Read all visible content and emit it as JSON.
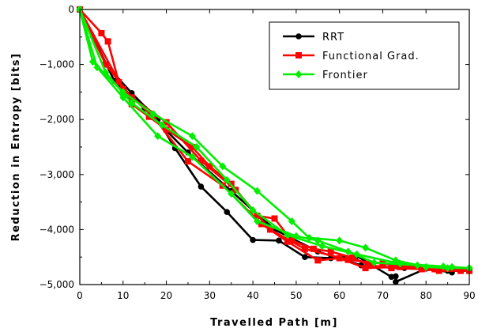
{
  "chart_data": {
    "type": "line",
    "xlabel": "Travelled Path [m]",
    "ylabel": "Reduction in Entropy [bits]",
    "xlim": [
      0,
      90
    ],
    "ylim": [
      -5000,
      0
    ],
    "x_ticks": [
      0,
      10,
      20,
      30,
      40,
      50,
      60,
      70,
      80,
      90
    ],
    "y_ticks": [
      0,
      -1000,
      -2000,
      -3000,
      -4000,
      -5000
    ],
    "x_tick_labels": [
      "0",
      "10",
      "20",
      "30",
      "40",
      "50",
      "60",
      "70",
      "80",
      "90"
    ],
    "y_tick_labels": [
      "0",
      "−1,000",
      "−2,000",
      "−3,000",
      "−4,000",
      "−5,000"
    ],
    "grid": false,
    "legend_position": "top-right",
    "series": [
      {
        "name": "RRT",
        "color": "#000000",
        "marker": "circle",
        "runs": [
          [
            [
              0,
              0
            ],
            [
              6,
              -1000
            ],
            [
              12,
              -1520
            ],
            [
              18,
              -2000
            ],
            [
              22,
              -2520
            ],
            [
              28,
              -3220
            ],
            [
              34,
              -3680
            ],
            [
              40,
              -4190
            ],
            [
              46,
              -4200
            ],
            [
              52,
              -4500
            ],
            [
              58,
              -4520
            ],
            [
              64,
              -4480
            ],
            [
              72,
              -4860
            ],
            [
              73,
              -4850
            ],
            [
              73,
              -4950
            ],
            [
              80,
              -4710
            ],
            [
              86,
              -4780
            ]
          ],
          [
            [
              0,
              0
            ],
            [
              8,
              -1300
            ],
            [
              15,
              -1800
            ],
            [
              25,
              -2600
            ],
            [
              35,
              -3300
            ],
            [
              45,
              -4000
            ],
            [
              55,
              -4400
            ],
            [
              65,
              -4650
            ],
            [
              75,
              -4700
            ],
            [
              85,
              -4750
            ],
            [
              90,
              -4750
            ]
          ]
        ]
      },
      {
        "name": "Functional Grad.",
        "color": "#ff0000",
        "marker": "square",
        "runs": [
          [
            [
              0,
              0
            ],
            [
              5,
              -430
            ],
            [
              6.5,
              -580
            ],
            [
              9,
              -1320
            ],
            [
              12,
              -1720
            ],
            [
              16,
              -1950
            ],
            [
              20,
              -2180
            ],
            [
              26,
              -2500
            ],
            [
              30,
              -2850
            ],
            [
              35,
              -3170
            ],
            [
              41,
              -3750
            ],
            [
              45,
              -3800
            ],
            [
              49,
              -4200
            ],
            [
              54,
              -4350
            ],
            [
              58,
              -4400
            ],
            [
              63,
              -4510
            ],
            [
              67,
              -4650
            ],
            [
              72,
              -4700
            ],
            [
              79,
              -4720
            ],
            [
              83,
              -4750
            ],
            [
              90,
              -4750
            ]
          ],
          [
            [
              0,
              0
            ],
            [
              10,
              -1450
            ],
            [
              17,
              -1950
            ],
            [
              25,
              -2760
            ],
            [
              33,
              -3200
            ],
            [
              42,
              -3900
            ],
            [
              48,
              -4220
            ],
            [
              55,
              -4560
            ],
            [
              60,
              -4520
            ],
            [
              66,
              -4700
            ],
            [
              74,
              -4680
            ],
            [
              82,
              -4720
            ],
            [
              88,
              -4750
            ]
          ],
          [
            [
              0,
              0
            ],
            [
              6,
              -1000
            ],
            [
              12,
              -1600
            ],
            [
              20,
              -2050
            ],
            [
              28,
              -2750
            ],
            [
              36,
              -3280
            ],
            [
              44,
              -4000
            ],
            [
              52,
              -4350
            ],
            [
              62,
              -4550
            ],
            [
              70,
              -4620
            ],
            [
              80,
              -4700
            ],
            [
              90,
              -4740
            ]
          ]
        ]
      },
      {
        "name": "Frontier",
        "color": "#00ee00",
        "marker": "diamond",
        "runs": [
          [
            [
              0,
              0
            ],
            [
              3,
              -950
            ],
            [
              10,
              -1500
            ],
            [
              17,
              -1900
            ],
            [
              26,
              -2300
            ],
            [
              33,
              -2850
            ],
            [
              41,
              -3300
            ],
            [
              49,
              -3850
            ],
            [
              53,
              -4150
            ],
            [
              60,
              -4200
            ],
            [
              66,
              -4330
            ],
            [
              73,
              -4560
            ],
            [
              80,
              -4680
            ],
            [
              85,
              -4700
            ],
            [
              90,
              -4700
            ]
          ],
          [
            [
              0,
              0
            ],
            [
              4,
              -1050
            ],
            [
              10,
              -1600
            ],
            [
              18,
              -2300
            ],
            [
              26,
              -2680
            ],
            [
              35,
              -3350
            ],
            [
              41,
              -3850
            ],
            [
              50,
              -4120
            ],
            [
              55,
              -4200
            ],
            [
              62,
              -4400
            ],
            [
              68,
              -4600
            ],
            [
              78,
              -4650
            ],
            [
              86,
              -4680
            ]
          ],
          [
            [
              0,
              0
            ],
            [
              6,
              -1150
            ],
            [
              12,
              -1700
            ],
            [
              19,
              -2100
            ],
            [
              27,
              -2500
            ],
            [
              34,
              -3100
            ],
            [
              40,
              -3650
            ],
            [
              48,
              -4100
            ],
            [
              56,
              -4300
            ],
            [
              64,
              -4450
            ],
            [
              74,
              -4620
            ],
            [
              84,
              -4670
            ],
            [
              90,
              -4700
            ]
          ]
        ]
      }
    ]
  }
}
